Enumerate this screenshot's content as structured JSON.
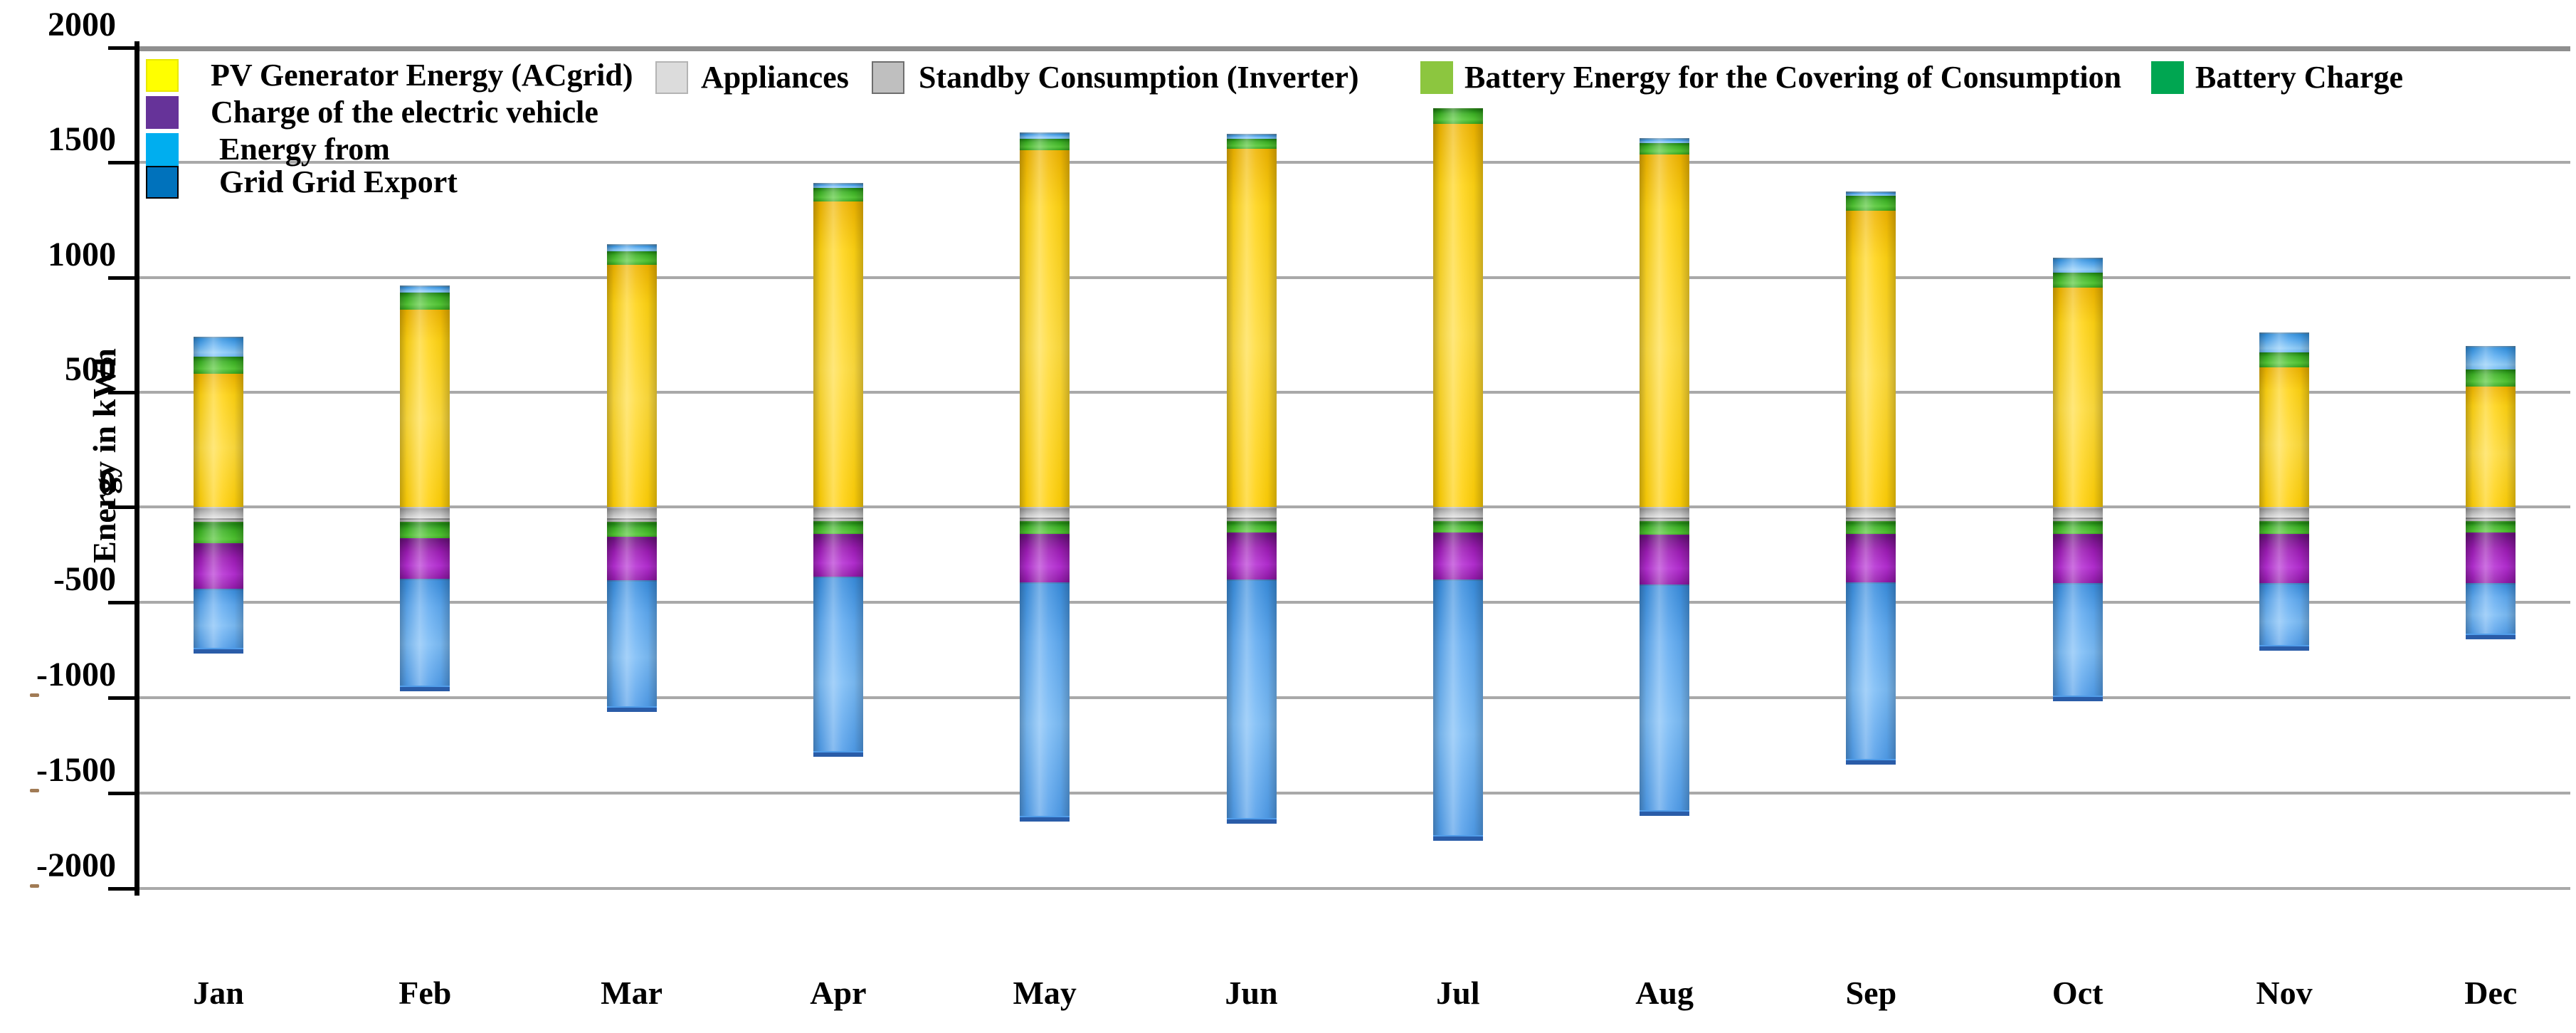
{
  "figure": {
    "background": "#FFFFFF",
    "plot_border_top_color": "#8F8F8F",
    "gridline_color": "#A9A9A9"
  },
  "y_axis": {
    "title": "Energy in kWh",
    "tick_labels": [
      "2000",
      "1500",
      "1000",
      "500",
      "0",
      "-500",
      "-1000",
      "-1500",
      "-2000"
    ],
    "tick_values": [
      2000,
      1500,
      1000,
      500,
      0,
      -500,
      -1000,
      -1500,
      -2000
    ]
  },
  "x_axis": {
    "tick_labels": [
      "Jan",
      "Feb",
      "Mar",
      "Apr",
      "May",
      "Jun",
      "Jul",
      "Aug",
      "Sep",
      "Oct",
      "Nov",
      "Dec"
    ]
  },
  "legend": {
    "items": [
      {
        "id": "pv",
        "label": "PV Generator Energy (ACgrid)",
        "color": "#FFFF00",
        "border": "#E8E800"
      },
      {
        "id": "appliances",
        "label": "Appliances",
        "color": "#DCDCDC",
        "border": "#B4B4B4"
      },
      {
        "id": "standby",
        "label": "Standby Consumption (Inverter)",
        "color": "#BFBFBF",
        "border": "#6E6E6E"
      },
      {
        "id": "batt_cover",
        "label": "Battery Energy for the Covering of Consumption",
        "color": "#8CC63F",
        "border": "#8CC63F"
      },
      {
        "id": "batt_charge",
        "label": "Battery Charge",
        "color": "#00A651",
        "border": "#00A651"
      },
      {
        "id": "ev",
        "label": "Charge of the electric vehicle",
        "color": "#663399",
        "border": "#663399"
      },
      {
        "id": "grid_import",
        "label": " Energy from",
        "color": "#00AEEF",
        "border": "#00AEEF"
      },
      {
        "id": "grid_export",
        "label": "Grid Grid Export",
        "color": "#0072BC",
        "border": "#000000"
      }
    ]
  },
  "artifacts": {
    "dash_marks_at_values": [
      -1000,
      -1500,
      -2000
    ]
  },
  "chart_data": {
    "type": "bar",
    "subtype": "stacked_bar_positive_negative",
    "title": "",
    "xlabel": "",
    "ylabel": "Energy in kWh",
    "ylim": [
      -2000,
      2000
    ],
    "ytick_interval": 500,
    "grid": true,
    "legend_position": "top-left-inside",
    "categories": [
      "Jan",
      "Feb",
      "Mar",
      "Apr",
      "May",
      "Jun",
      "Jul",
      "Aug",
      "Sep",
      "Oct",
      "Nov",
      "Dec"
    ],
    "series": [
      {
        "key": "grid_import",
        "name": "Energy from Grid",
        "sign": "positive",
        "stack_order_from_zero": 3,
        "color": "#56AAF0",
        "values": [
          80,
          25,
          25,
          15,
          20,
          15,
          0,
          15,
          15,
          60,
          80,
          95
        ]
      },
      {
        "key": "batt_cover",
        "name": "Battery Energy for the Covering of Consumption",
        "sign": "positive",
        "stack_order_from_zero": 2,
        "color": "#3CB224",
        "values": [
          75,
          75,
          60,
          60,
          50,
          45,
          60,
          50,
          65,
          65,
          65,
          75
        ]
      },
      {
        "key": "pv",
        "name": "PV Generator Energy (ACgrid)",
        "sign": "positive",
        "stack_order_from_zero": 1,
        "color": "#FFD412",
        "values": [
          585,
          865,
          1060,
          1335,
          1560,
          1565,
          1675,
          1540,
          1295,
          960,
          615,
          530
        ]
      },
      {
        "key": "appliances",
        "name": "Appliances",
        "sign": "negative",
        "stack_order_from_zero": 1,
        "color": "#C9C9C9",
        "values": [
          -60,
          -60,
          -60,
          -55,
          -55,
          -55,
          -55,
          -55,
          -55,
          -55,
          -55,
          -55
        ]
      },
      {
        "key": "standby",
        "name": "Standby Consumption (Inverter)",
        "sign": "negative",
        "stack_order_from_zero": 2,
        "color": "#ADADAD",
        "values": [
          -20,
          -20,
          -20,
          -20,
          -20,
          -20,
          -20,
          -20,
          -20,
          -20,
          -20,
          -20
        ]
      },
      {
        "key": "batt_charge",
        "name": "Battery Charge",
        "sign": "negative",
        "stack_order_from_zero": 3,
        "color": "#3CB224",
        "values": [
          -110,
          -85,
          -75,
          -65,
          -65,
          -60,
          -60,
          -70,
          -65,
          -65,
          -65,
          -60
        ]
      },
      {
        "key": "ev",
        "name": "Charge of the electric vehicle",
        "sign": "negative",
        "stack_order_from_zero": 4,
        "color": "#9C1BB4",
        "values": [
          -240,
          -210,
          -230,
          -225,
          -255,
          -245,
          -245,
          -260,
          -255,
          -260,
          -260,
          -265
        ]
      },
      {
        "key": "grid_export",
        "name": "Grid Export",
        "sign": "negative",
        "stack_order_from_zero": 5,
        "color": "#5EA9F0",
        "values": [
          -310,
          -560,
          -660,
          -915,
          -1225,
          -1250,
          -1340,
          -1185,
          -925,
          -590,
          -325,
          -265
        ]
      }
    ],
    "derived_totals": {
      "bar_tops": [
        740,
        965,
        1145,
        1410,
        1630,
        1625,
        1735,
        1605,
        1375,
        1085,
        760,
        700
      ],
      "bar_bottoms": [
        -740,
        -935,
        -1045,
        -1280,
        -1620,
        -1630,
        -1720,
        -1590,
        -1320,
        -990,
        -725,
        -665
      ]
    }
  }
}
